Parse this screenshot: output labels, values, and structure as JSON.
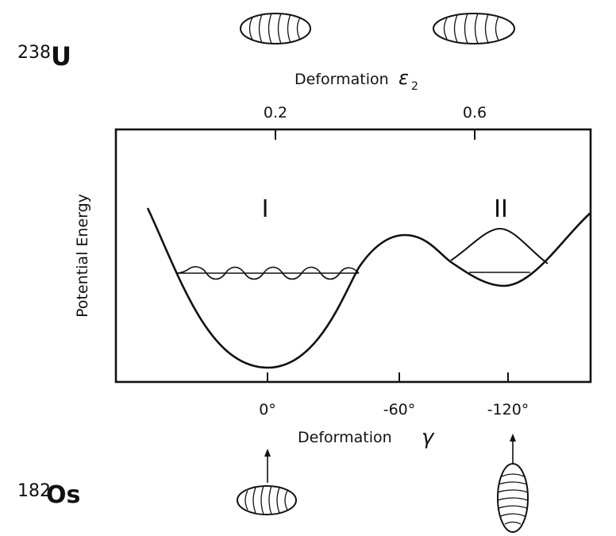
{
  "nuclei": {
    "top": {
      "mass": "238",
      "symbol": "U"
    },
    "bottom": {
      "mass": "182",
      "symbol": "Os"
    }
  },
  "axes": {
    "top_label": "Deformation",
    "top_symbol": "ε",
    "top_subscript": "2",
    "top_ticks": [
      "0.2",
      "0.6"
    ],
    "y_label": "Potential Energy",
    "bottom_label": "Deformation",
    "bottom_symbol": "γ",
    "bottom_ticks": [
      "0°",
      "-60°",
      "-120°"
    ]
  },
  "wells": {
    "first": "I",
    "second": "II"
  }
}
